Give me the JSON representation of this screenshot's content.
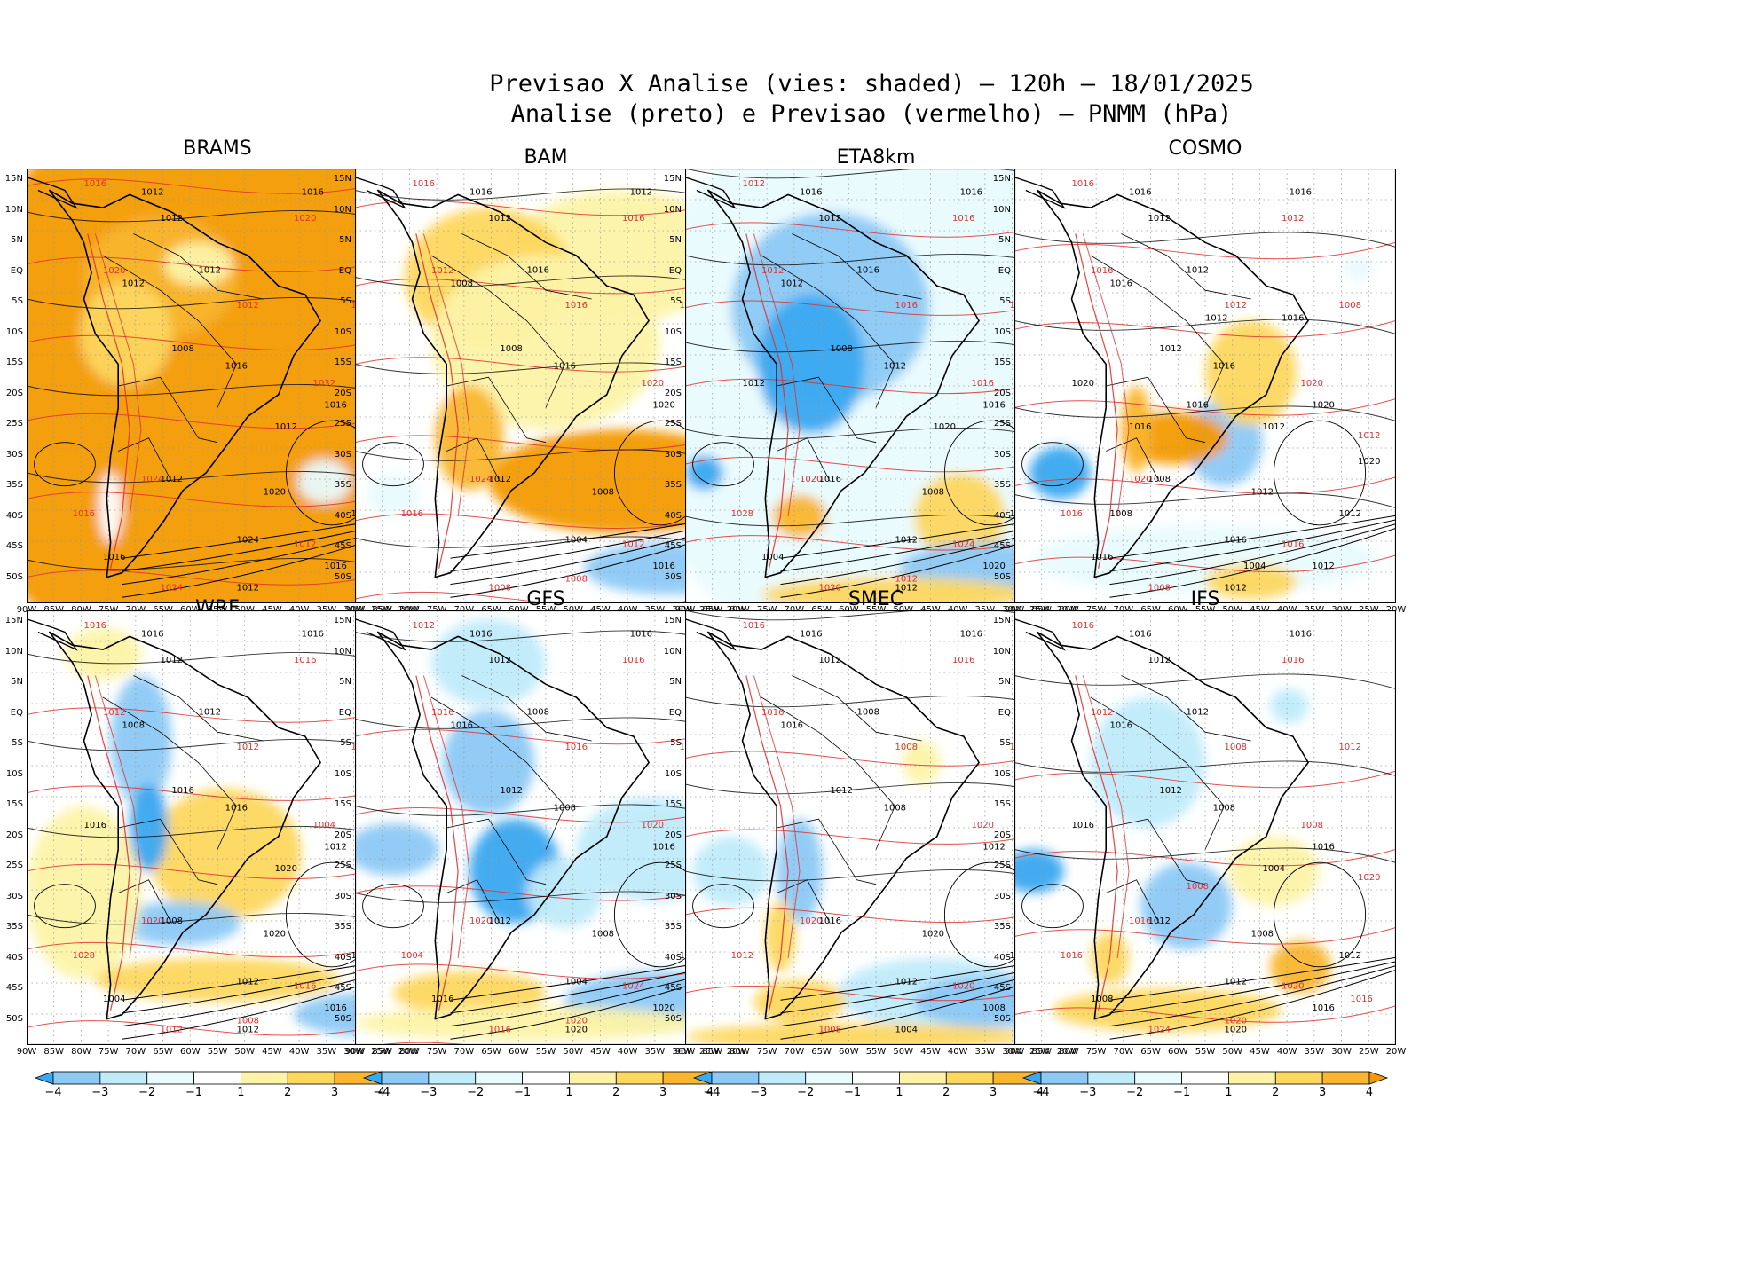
{
  "title": {
    "line1": "Previsao X Analise (vies: shaded) — 120h — 18/01/2025",
    "line2": "Analise (preto) e Previsao (vermelho) — PNMM (hPa)"
  },
  "latitude_labels": [
    "15N",
    "10N",
    "5N",
    "EQ",
    "5S",
    "10S",
    "15S",
    "20S",
    "25S",
    "30S",
    "35S",
    "40S",
    "45S",
    "50S"
  ],
  "longitude_labels": [
    "90W",
    "85W",
    "80W",
    "75W",
    "70W",
    "65W",
    "60W",
    "55W",
    "50W",
    "45W",
    "40W",
    "35W",
    "30W",
    "25W",
    "20W"
  ],
  "colorbar": {
    "ticks": [
      "−4",
      "−3",
      "−2",
      "−1",
      "1",
      "2",
      "3",
      "4"
    ],
    "colors": [
      "#3aa8f0",
      "#8cc9f5",
      "#c0ebfb",
      "#e9fbfd",
      "#ffffff",
      "#fdf3a8",
      "#fdd75e",
      "#f9b62e",
      "#f39a00"
    ]
  },
  "colors": {
    "analysis": "#000000",
    "forecast": "#e03030",
    "grid": "#9a9a9a"
  },
  "panels": [
    {
      "model": "BRAMS",
      "labels_black": [
        "1012",
        "1016",
        "1012",
        "1012",
        "1012",
        "1008",
        "1016",
        "1016",
        "1012",
        "1020",
        "1024",
        "1016",
        "1012",
        "1020",
        "1016",
        "1012"
      ],
      "labels_red": [
        "1016",
        "1020",
        "1020",
        "1012",
        "1028",
        "1032",
        "1024",
        "1024",
        "1016",
        "1012",
        "1024"
      ]
    },
    {
      "model": "BAM",
      "labels_black": [
        "1016",
        "1012",
        "1012",
        "1016",
        "1008",
        "1008",
        "1016",
        "1020",
        "1012",
        "1008",
        "1004",
        "1016"
      ],
      "labels_red": [
        "1016",
        "1016",
        "1012",
        "1016",
        "1016",
        "1020",
        "1024",
        "1024",
        "1016",
        "1012",
        "1008",
        "1008",
        "1012"
      ]
    },
    {
      "model": "ETA8km",
      "labels_black": [
        "1016",
        "1016",
        "1012",
        "1016",
        "1012",
        "1008",
        "1012",
        "1016",
        "1016",
        "1008",
        "1012",
        "1020",
        "1012",
        "1008",
        "1004",
        "1020",
        "1012"
      ],
      "labels_red": [
        "1012",
        "1016",
        "1012",
        "1016",
        "1012",
        "1016",
        "1020",
        "1020",
        "1028",
        "1024",
        "1020",
        "1012"
      ]
    },
    {
      "model": "COSMO",
      "labels_black": [
        "1016",
        "1016",
        "1012",
        "1012",
        "1016",
        "1012",
        "1016",
        "1020",
        "1008",
        "1012",
        "1016",
        "1012",
        "1012",
        "1012",
        "1016",
        "1012",
        "1020",
        "1016",
        "1016",
        "1016",
        "1012",
        "1008",
        "1004",
        "1020"
      ],
      "labels_red": [
        "1016",
        "1012",
        "1016",
        "1012",
        "1008",
        "1020",
        "1012",
        "1020",
        "1016",
        "1016",
        "1008"
      ]
    },
    {
      "model": "WRF",
      "labels_black": [
        "1016",
        "1016",
        "1012",
        "1012",
        "1008",
        "1016",
        "1016",
        "1012",
        "1008",
        "1020",
        "1012",
        "1016",
        "1012",
        "1008",
        "1004",
        "1020",
        "1016"
      ],
      "labels_red": [
        "1016",
        "1016",
        "1012",
        "1012",
        "1016",
        "1004",
        "1012",
        "1020",
        "1028",
        "1016",
        "1012",
        "1008",
        "1020"
      ]
    },
    {
      "model": "GFS",
      "labels_black": [
        "1016",
        "1016",
        "1012",
        "1008",
        "1016",
        "1012",
        "1008",
        "1016",
        "1012",
        "1008",
        "1004",
        "1020",
        "1020",
        "1012",
        "1016"
      ],
      "labels_red": [
        "1012",
        "1016",
        "1016",
        "1016",
        "1020",
        "1020",
        "1016",
        "1020",
        "1004",
        "1024",
        "1016",
        "1020"
      ]
    },
    {
      "model": "SMEC",
      "labels_black": [
        "1016",
        "1016",
        "1012",
        "1008",
        "1016",
        "1012",
        "1008",
        "1012",
        "1016",
        "1020",
        "1012",
        "1008",
        "1004",
        "1020"
      ],
      "labels_red": [
        "1016",
        "1016",
        "1016",
        "1008",
        "1012",
        "1020",
        "1016",
        "1020",
        "1012",
        "1020",
        "1008"
      ]
    },
    {
      "model": "IFS",
      "labels_black": [
        "1016",
        "1016",
        "1012",
        "1012",
        "1016",
        "1012",
        "1008",
        "1016",
        "1012",
        "1008",
        "1012",
        "1016",
        "1020",
        "1012",
        "1008",
        "1004",
        "1016"
      ],
      "labels_red": [
        "1016",
        "1016",
        "1012",
        "1008",
        "1012",
        "1008",
        "1020",
        "1016",
        "1016",
        "1020",
        "1024",
        "1020",
        "1016",
        "1008"
      ]
    }
  ]
}
